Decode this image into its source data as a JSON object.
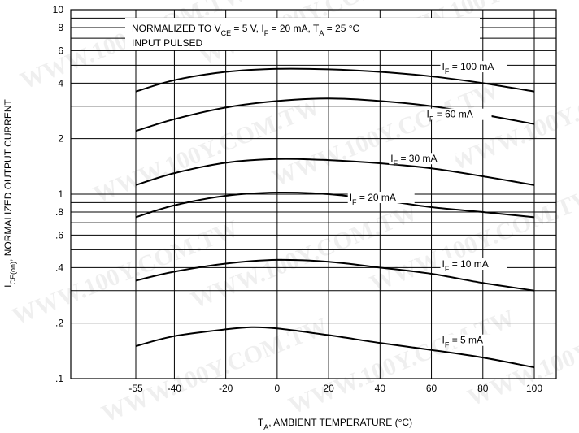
{
  "chart_data": {
    "type": "line",
    "title": "",
    "xlabel": "T_A, AMBIENT TEMPERATURE (°C)",
    "xlabel_parts": {
      "main": "T",
      "sub": "A",
      "rest": ", AMBIENT TEMPERATURE (°C)"
    },
    "ylabel": "I_CE(on), NORMALIZED OUTPUT CURRENT",
    "ylabel_parts": {
      "main": "I",
      "sub": "CE(on)",
      "rest": ", NORMALIZED OUTPUT CURRENT"
    },
    "x_scale": "linear",
    "y_scale": "log",
    "xlim": [
      -75,
      100
    ],
    "ylim": [
      0.1,
      10
    ],
    "x_ticks": [
      {
        "value": -55,
        "label": "-55"
      },
      {
        "value": -40,
        "label": "-40"
      },
      {
        "value": -20,
        "label": "-20"
      },
      {
        "value": 0,
        "label": "0"
      },
      {
        "value": 20,
        "label": "20"
      },
      {
        "value": 40,
        "label": "40"
      },
      {
        "value": 60,
        "label": "60"
      },
      {
        "value": 80,
        "label": "80"
      },
      {
        "value": 100,
        "label": "100"
      }
    ],
    "y_ticks": [
      {
        "value": 0.1,
        "label": ".1"
      },
      {
        "value": 0.2,
        "label": ".2"
      },
      {
        "value": 0.4,
        "label": ".4"
      },
      {
        "value": 0.6,
        "label": ".6"
      },
      {
        "value": 0.8,
        "label": ".8"
      },
      {
        "value": 1,
        "label": "1"
      },
      {
        "value": 2,
        "label": "2"
      },
      {
        "value": 4,
        "label": "4"
      },
      {
        "value": 6,
        "label": "6"
      },
      {
        "value": 8,
        "label": "8"
      },
      {
        "value": 10,
        "label": "10"
      }
    ],
    "grid": true,
    "annotation": {
      "line1": {
        "prefix": "NORMALIZED TO  V",
        "sub1": "CE",
        "mid1": " = 5 V,  I",
        "sub2": "F",
        "mid2": " = 20 mA,  T",
        "sub3": "A",
        "suffix": " = 25 °C"
      },
      "line2": "INPUT PULSED"
    },
    "series": [
      {
        "name": "I_F = 100 mA",
        "label_main": "I",
        "label_sub": "F",
        "label_rest": " = 100 mA",
        "x": [
          -55,
          -40,
          -20,
          0,
          20,
          40,
          60,
          80,
          100
        ],
        "y": [
          3.6,
          4.15,
          4.6,
          4.78,
          4.75,
          4.6,
          4.35,
          4.0,
          3.6
        ]
      },
      {
        "name": "I_F = 60 mA",
        "label_main": "I",
        "label_sub": "F",
        "label_rest": " = 60 mA",
        "x": [
          -55,
          -40,
          -20,
          0,
          20,
          40,
          60,
          80,
          100
        ],
        "y": [
          2.2,
          2.55,
          2.95,
          3.2,
          3.3,
          3.2,
          3.0,
          2.7,
          2.4
        ]
      },
      {
        "name": "I_F = 30 mA",
        "label_main": "I",
        "label_sub": "F",
        "label_rest": " = 30 mA",
        "x": [
          -55,
          -40,
          -20,
          0,
          20,
          40,
          60,
          80,
          100
        ],
        "y": [
          1.12,
          1.3,
          1.48,
          1.55,
          1.53,
          1.47,
          1.38,
          1.25,
          1.12
        ]
      },
      {
        "name": "I_F = 20 mA",
        "label_main": "I",
        "label_sub": "F",
        "label_rest": " = 20 mA",
        "x": [
          -55,
          -40,
          -20,
          0,
          20,
          40,
          60,
          80,
          100
        ],
        "y": [
          0.75,
          0.87,
          0.98,
          1.02,
          1.0,
          0.93,
          0.85,
          0.8,
          0.75
        ]
      },
      {
        "name": "I_F = 10 mA",
        "label_main": "I",
        "label_sub": "F",
        "label_rest": " = 10 mA",
        "x": [
          -55,
          -40,
          -20,
          0,
          20,
          40,
          60,
          80,
          100
        ],
        "y": [
          0.34,
          0.38,
          0.42,
          0.44,
          0.43,
          0.4,
          0.37,
          0.33,
          0.3
        ]
      },
      {
        "name": "I_F = 5 mA",
        "label_main": "I",
        "label_sub": "F",
        "label_rest": " = 5 mA",
        "x": [
          -55,
          -40,
          -20,
          -10,
          0,
          20,
          40,
          60,
          80,
          100
        ],
        "y": [
          0.15,
          0.17,
          0.185,
          0.19,
          0.187,
          0.172,
          0.156,
          0.143,
          0.13,
          0.115
        ]
      }
    ]
  },
  "watermark": "WWW.100Y.COM.TW"
}
